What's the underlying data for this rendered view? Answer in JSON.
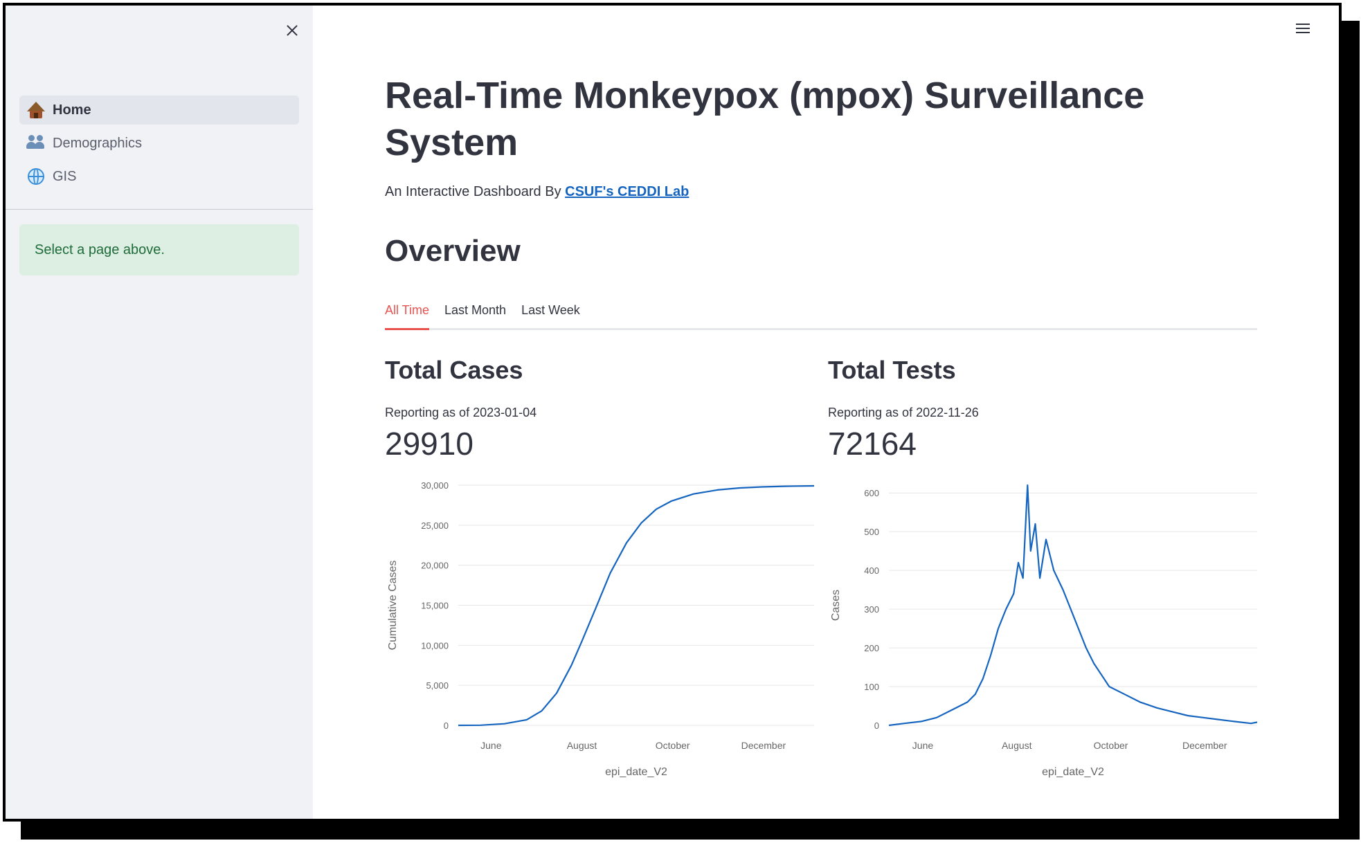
{
  "sidebar": {
    "nav_items": [
      {
        "label": "Home",
        "icon": "hut-icon",
        "active": true
      },
      {
        "label": "Demographics",
        "icon": "people-icon",
        "active": false
      },
      {
        "label": "GIS",
        "icon": "globe-icon",
        "active": false
      }
    ],
    "info_message": "Select a page above."
  },
  "main": {
    "title": "Real-Time Monkeypox (mpox) Surveillance System",
    "subtitle_prefix": "An Interactive Dashboard By ",
    "subtitle_link": "CSUF's CEDDI Lab",
    "section_heading": "Overview",
    "tabs": [
      {
        "label": "All Time",
        "active": true
      },
      {
        "label": "Last Month",
        "active": false
      },
      {
        "label": "Last Week",
        "active": false
      }
    ],
    "total_cases": {
      "heading": "Total Cases",
      "as_of": "Reporting as of 2023-01-04",
      "value": "29910"
    },
    "total_tests": {
      "heading": "Total Tests",
      "as_of": "Reporting as of 2022-11-26",
      "value": "72164"
    }
  },
  "colors": {
    "accent": "#e8534f",
    "line": "#1565c0",
    "sidebar_bg": "#f0f2f6",
    "info_bg": "#dcefe2",
    "text": "#31333f"
  },
  "chart_data": [
    {
      "type": "line",
      "xlabel": "epi_date_V2",
      "ylabel": "Cumulative Cases",
      "x_ticks": [
        "June",
        "August",
        "October",
        "December"
      ],
      "y_ticks": [
        "0",
        "5,000",
        "10,000",
        "15,000",
        "20,000",
        "25,000",
        "30,000"
      ],
      "ylim": [
        0,
        30000
      ],
      "x": [
        "2022-05-10",
        "2022-05-25",
        "2022-06-10",
        "2022-06-25",
        "2022-07-05",
        "2022-07-15",
        "2022-07-25",
        "2022-08-01",
        "2022-08-10",
        "2022-08-20",
        "2022-08-31",
        "2022-09-10",
        "2022-09-20",
        "2022-09-30",
        "2022-10-15",
        "2022-10-31",
        "2022-11-15",
        "2022-11-30",
        "2022-12-15",
        "2023-01-04"
      ],
      "values": [
        0,
        20,
        200,
        700,
        1800,
        4000,
        7500,
        10500,
        14500,
        19000,
        22800,
        25300,
        27000,
        28000,
        28900,
        29400,
        29650,
        29780,
        29860,
        29910
      ]
    },
    {
      "type": "line",
      "xlabel": "epi_date_V2",
      "ylabel": "Cases",
      "x_ticks": [
        "June",
        "August",
        "October",
        "December"
      ],
      "y_ticks": [
        "0",
        "100",
        "200",
        "300",
        "400",
        "500",
        "600"
      ],
      "ylim": [
        0,
        620
      ],
      "x": [
        "2022-05-10",
        "2022-05-20",
        "2022-05-31",
        "2022-06-10",
        "2022-06-20",
        "2022-06-30",
        "2022-07-05",
        "2022-07-10",
        "2022-07-15",
        "2022-07-20",
        "2022-07-25",
        "2022-07-30",
        "2022-08-02",
        "2022-08-05",
        "2022-08-08",
        "2022-08-10",
        "2022-08-13",
        "2022-08-16",
        "2022-08-20",
        "2022-08-25",
        "2022-08-31",
        "2022-09-05",
        "2022-09-10",
        "2022-09-15",
        "2022-09-20",
        "2022-09-25",
        "2022-09-30",
        "2022-10-10",
        "2022-10-20",
        "2022-10-31",
        "2022-11-10",
        "2022-11-20",
        "2022-11-30",
        "2022-12-10",
        "2022-12-20",
        "2022-12-31",
        "2023-01-04"
      ],
      "values": [
        0,
        5,
        10,
        20,
        40,
        60,
        80,
        120,
        180,
        250,
        300,
        340,
        420,
        380,
        620,
        450,
        520,
        380,
        480,
        400,
        350,
        300,
        250,
        200,
        160,
        130,
        100,
        80,
        60,
        45,
        35,
        25,
        20,
        15,
        10,
        5,
        8
      ]
    }
  ]
}
